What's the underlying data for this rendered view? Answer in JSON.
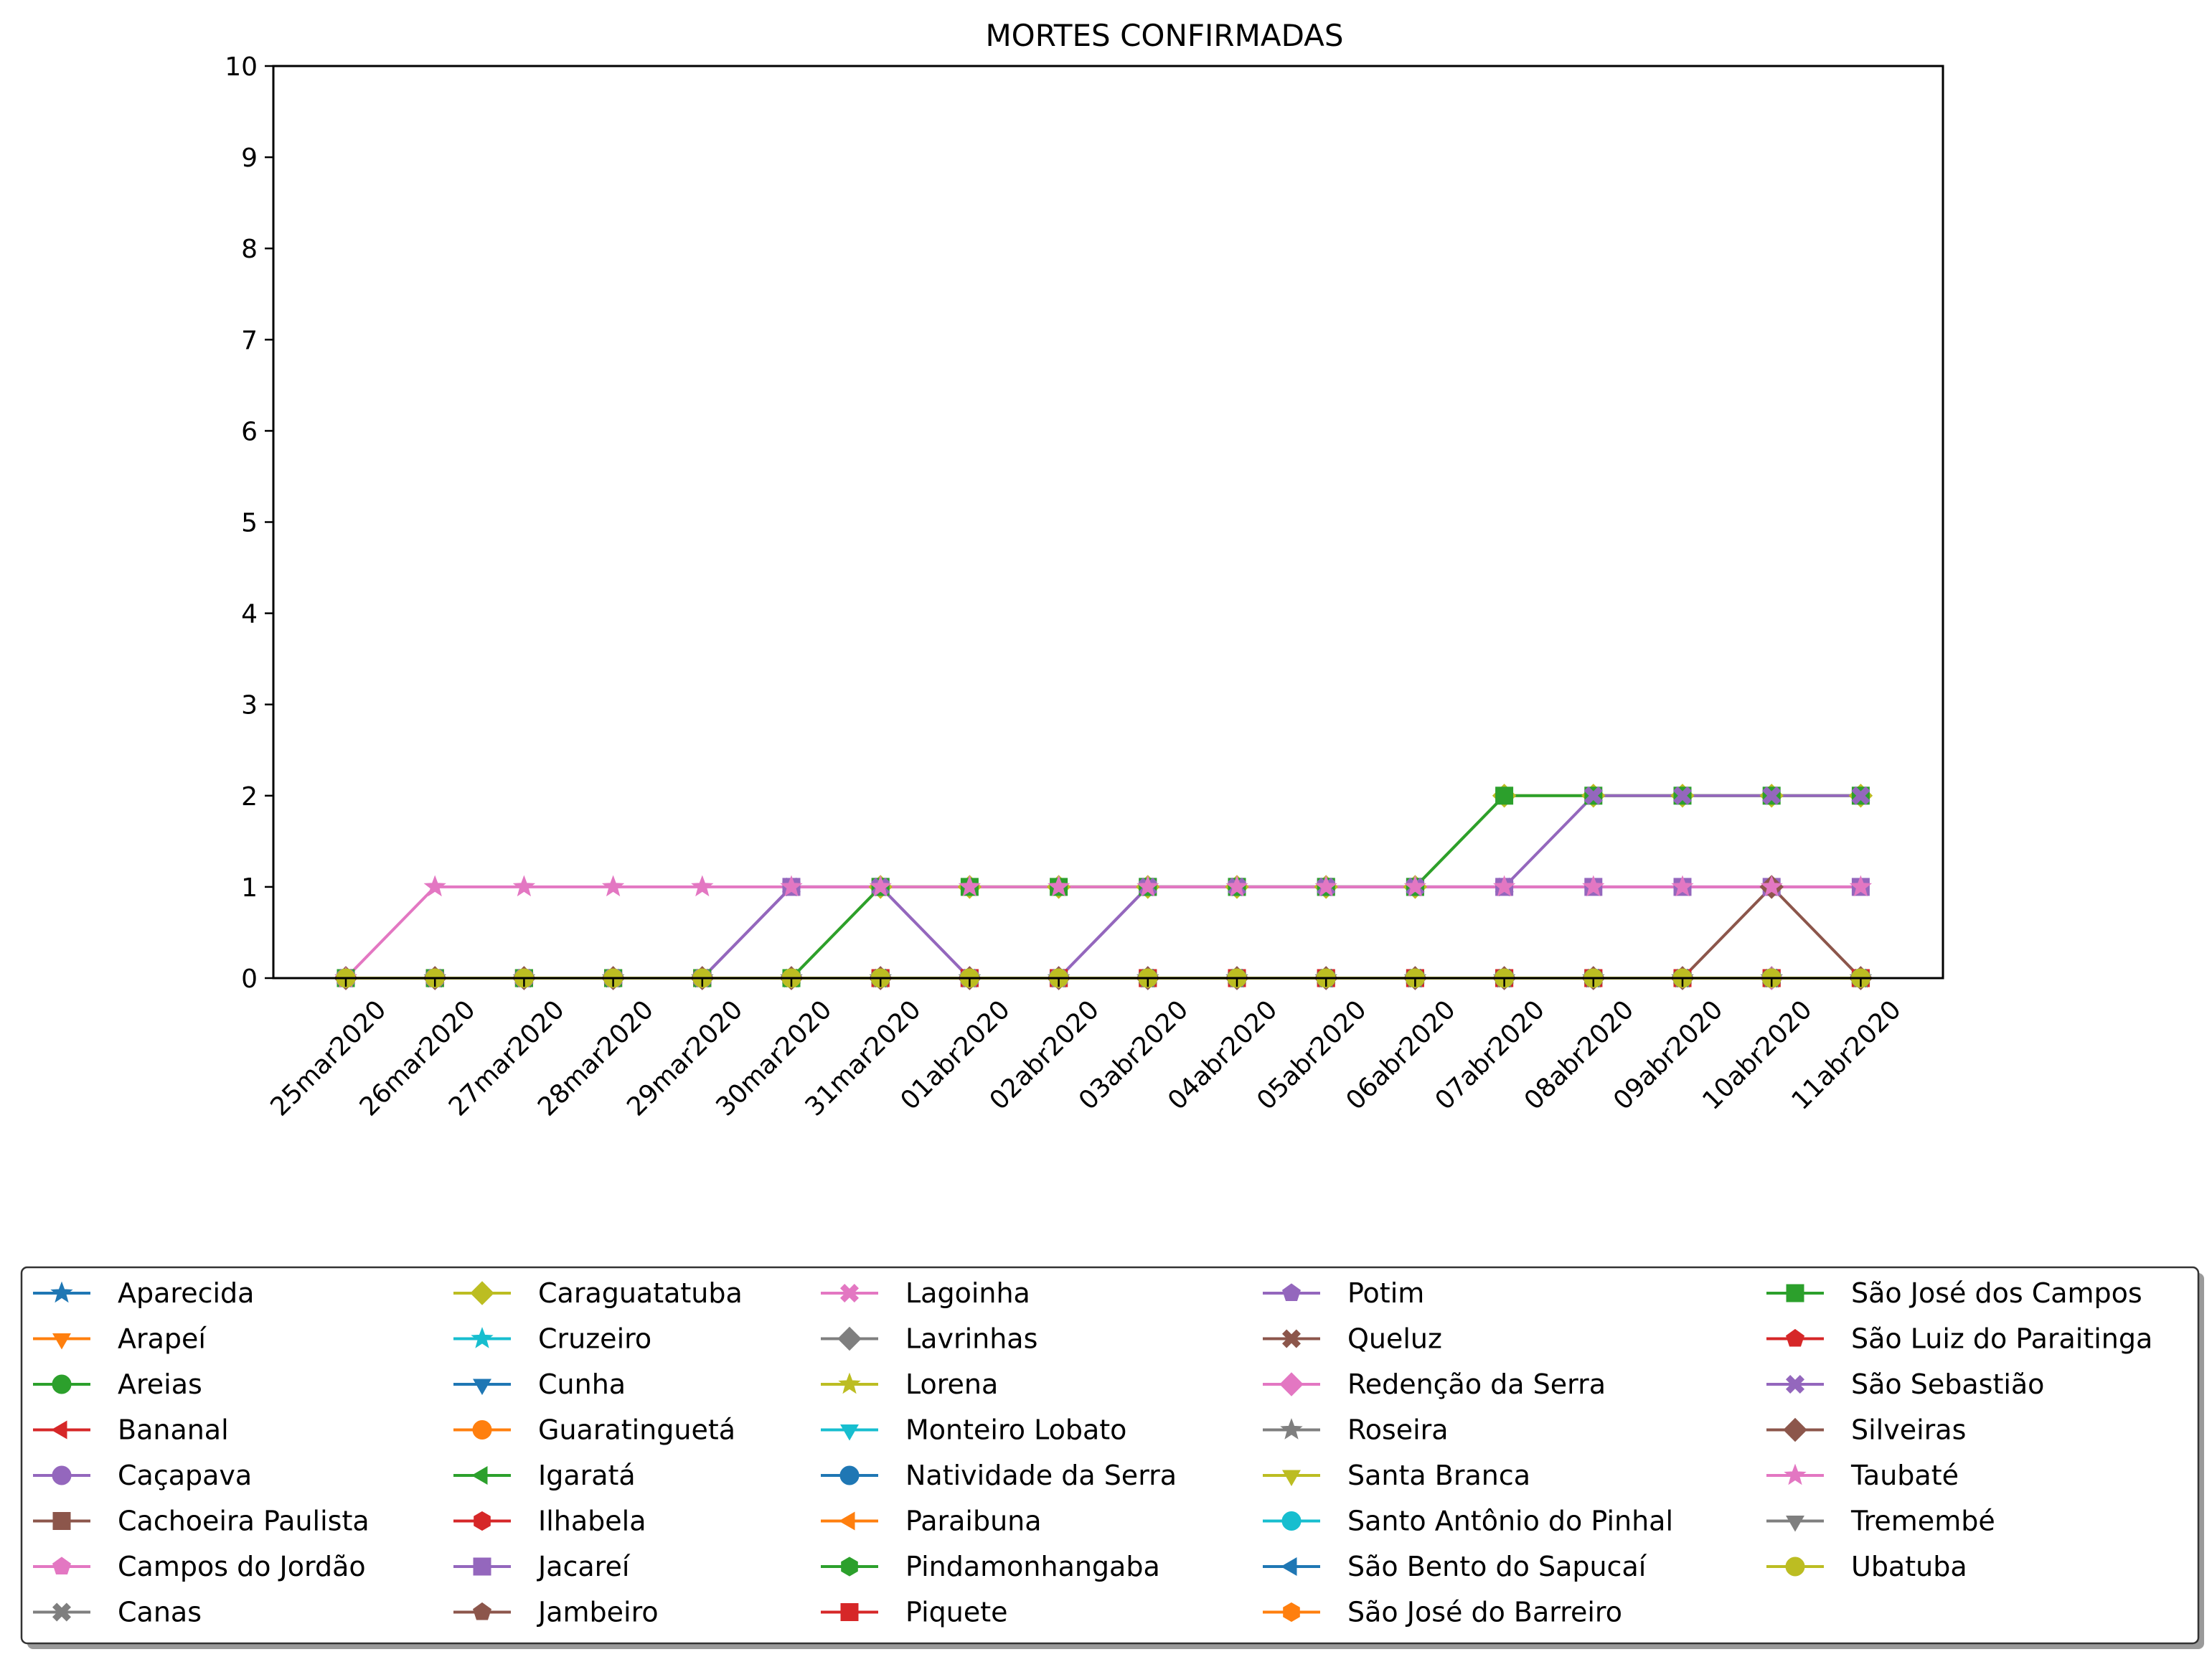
{
  "chart_data": {
    "type": "line",
    "title": "MORTES CONFIRMADAS",
    "xlabel": "",
    "ylabel": "",
    "ylim": [
      0,
      10
    ],
    "yticks": [
      "0",
      "1",
      "2",
      "3",
      "4",
      "5",
      "6",
      "7",
      "8",
      "9",
      "10"
    ],
    "grid": false,
    "legend_position": "bottom",
    "legend_columns": 5,
    "categories": [
      "25mar2020",
      "26mar2020",
      "27mar2020",
      "28mar2020",
      "29mar2020",
      "30mar2020",
      "31mar2020",
      "01abr2020",
      "02abr2020",
      "03abr2020",
      "04abr2020",
      "05abr2020",
      "06abr2020",
      "07abr2020",
      "08abr2020",
      "09abr2020",
      "10abr2020",
      "11abr2020"
    ],
    "series": [
      {
        "name": "Aparecida",
        "color": "#1f77b4",
        "marker": "star",
        "values": [
          0,
          0,
          0,
          0,
          0,
          0,
          0,
          0,
          0,
          0,
          0,
          0,
          0,
          0,
          0,
          0,
          0,
          0
        ]
      },
      {
        "name": "Arapeí",
        "color": "#ff7f0e",
        "marker": "triangle-down",
        "values": [
          0,
          0,
          0,
          0,
          0,
          0,
          0,
          0,
          0,
          0,
          0,
          0,
          0,
          0,
          0,
          0,
          0,
          0
        ]
      },
      {
        "name": "Areias",
        "color": "#2ca02c",
        "marker": "circle",
        "values": [
          0,
          0,
          0,
          0,
          0,
          0,
          0,
          0,
          0,
          0,
          0,
          0,
          0,
          0,
          0,
          0,
          0,
          0
        ]
      },
      {
        "name": "Bananal",
        "color": "#d62728",
        "marker": "triangle-left",
        "values": [
          0,
          0,
          0,
          0,
          0,
          0,
          0,
          0,
          0,
          0,
          0,
          0,
          0,
          0,
          0,
          0,
          0,
          0
        ]
      },
      {
        "name": "Caçapava",
        "color": "#9467bd",
        "marker": "circle",
        "values": [
          0,
          0,
          0,
          0,
          0,
          0,
          0,
          0,
          0,
          0,
          0,
          0,
          0,
          0,
          0,
          0,
          0,
          0
        ]
      },
      {
        "name": "Cachoeira Paulista",
        "color": "#8c564b",
        "marker": "square",
        "values": [
          0,
          0,
          0,
          0,
          0,
          0,
          0,
          0,
          0,
          0,
          0,
          0,
          0,
          0,
          0,
          0,
          0,
          0
        ]
      },
      {
        "name": "Campos do Jordão",
        "color": "#e377c2",
        "marker": "pentagon",
        "values": [
          0,
          0,
          0,
          0,
          0,
          0,
          0,
          0,
          0,
          0,
          0,
          0,
          0,
          0,
          0,
          0,
          0,
          0
        ]
      },
      {
        "name": "Canas",
        "color": "#7f7f7f",
        "marker": "x-filled",
        "values": [
          0,
          0,
          0,
          0,
          0,
          0,
          0,
          0,
          0,
          0,
          0,
          0,
          0,
          0,
          0,
          0,
          0,
          0
        ]
      },
      {
        "name": "Caraguatatuba",
        "color": "#bcbd22",
        "marker": "diamond",
        "values": [
          0,
          0,
          0,
          0,
          0,
          0,
          1,
          1,
          1,
          1,
          1,
          1,
          1,
          2,
          2,
          2,
          2,
          2
        ]
      },
      {
        "name": "Cruzeiro",
        "color": "#17becf",
        "marker": "star",
        "values": [
          0,
          0,
          0,
          0,
          0,
          0,
          0,
          0,
          0,
          0,
          0,
          0,
          0,
          0,
          0,
          0,
          0,
          0
        ]
      },
      {
        "name": "Cunha",
        "color": "#1f77b4",
        "marker": "triangle-down",
        "values": [
          0,
          0,
          0,
          0,
          0,
          0,
          0,
          0,
          0,
          0,
          0,
          0,
          0,
          0,
          0,
          0,
          0,
          0
        ]
      },
      {
        "name": "Guaratinguetá",
        "color": "#ff7f0e",
        "marker": "circle",
        "values": [
          0,
          0,
          0,
          0,
          0,
          0,
          0,
          0,
          0,
          0,
          0,
          0,
          0,
          0,
          0,
          0,
          0,
          0
        ]
      },
      {
        "name": "Igaratá",
        "color": "#2ca02c",
        "marker": "triangle-left",
        "values": [
          0,
          0,
          0,
          0,
          0,
          0,
          0,
          0,
          0,
          0,
          0,
          0,
          0,
          0,
          0,
          0,
          0,
          0
        ]
      },
      {
        "name": "Ilhabela",
        "color": "#d62728",
        "marker": "hexagon",
        "values": [
          0,
          0,
          0,
          0,
          0,
          0,
          0,
          0,
          0,
          0,
          0,
          0,
          0,
          0,
          0,
          0,
          0,
          0
        ]
      },
      {
        "name": "Jacareí",
        "color": "#9467bd",
        "marker": "square",
        "values": [
          0,
          0,
          0,
          0,
          0,
          1,
          1,
          0,
          0,
          1,
          1,
          1,
          1,
          1,
          1,
          1,
          1,
          1
        ]
      },
      {
        "name": "Jambeiro",
        "color": "#8c564b",
        "marker": "pentagon",
        "values": [
          0,
          0,
          0,
          0,
          0,
          0,
          0,
          0,
          0,
          0,
          0,
          0,
          0,
          0,
          0,
          0,
          0,
          0
        ]
      },
      {
        "name": "Lagoinha",
        "color": "#e377c2",
        "marker": "x-filled",
        "values": [
          0,
          0,
          0,
          0,
          0,
          0,
          0,
          0,
          0,
          0,
          0,
          0,
          0,
          0,
          0,
          0,
          0,
          0
        ]
      },
      {
        "name": "Lavrinhas",
        "color": "#7f7f7f",
        "marker": "diamond",
        "values": [
          0,
          0,
          0,
          0,
          0,
          0,
          0,
          0,
          0,
          0,
          0,
          0,
          0,
          0,
          0,
          0,
          0,
          0
        ]
      },
      {
        "name": "Lorena",
        "color": "#bcbd22",
        "marker": "star",
        "values": [
          0,
          0,
          0,
          0,
          0,
          0,
          0,
          0,
          0,
          0,
          0,
          0,
          0,
          0,
          0,
          0,
          0,
          0
        ]
      },
      {
        "name": "Monteiro Lobato",
        "color": "#17becf",
        "marker": "triangle-down",
        "values": [
          0,
          0,
          0,
          0,
          0,
          0,
          0,
          0,
          0,
          0,
          0,
          0,
          0,
          0,
          0,
          0,
          0,
          0
        ]
      },
      {
        "name": "Natividade da Serra",
        "color": "#1f77b4",
        "marker": "circle",
        "values": [
          0,
          0,
          0,
          0,
          0,
          0,
          0,
          0,
          0,
          0,
          0,
          0,
          0,
          0,
          0,
          0,
          0,
          0
        ]
      },
      {
        "name": "Paraibuna",
        "color": "#ff7f0e",
        "marker": "triangle-left",
        "values": [
          0,
          0,
          0,
          0,
          0,
          0,
          0,
          0,
          0,
          0,
          0,
          0,
          0,
          0,
          0,
          0,
          0,
          0
        ]
      },
      {
        "name": "Pindamonhangaba",
        "color": "#2ca02c",
        "marker": "hexagon",
        "values": [
          0,
          0,
          0,
          0,
          0,
          0,
          0,
          0,
          0,
          0,
          0,
          0,
          0,
          0,
          0,
          0,
          0,
          0
        ]
      },
      {
        "name": "Piquete",
        "color": "#d62728",
        "marker": "square",
        "values": [
          0,
          0,
          0,
          0,
          0,
          0,
          0,
          0,
          0,
          0,
          0,
          0,
          0,
          0,
          0,
          0,
          0,
          0
        ]
      },
      {
        "name": "Potim",
        "color": "#9467bd",
        "marker": "pentagon",
        "values": [
          0,
          0,
          0,
          0,
          0,
          0,
          0,
          0,
          0,
          0,
          0,
          0,
          0,
          0,
          0,
          0,
          0,
          0
        ]
      },
      {
        "name": "Queluz",
        "color": "#8c564b",
        "marker": "x-filled",
        "values": [
          0,
          0,
          0,
          0,
          0,
          0,
          0,
          0,
          0,
          0,
          0,
          0,
          0,
          0,
          0,
          0,
          0,
          0
        ]
      },
      {
        "name": "Redenção da Serra",
        "color": "#e377c2",
        "marker": "diamond",
        "values": [
          0,
          0,
          0,
          0,
          0,
          0,
          0,
          0,
          0,
          0,
          0,
          0,
          0,
          0,
          0,
          0,
          0,
          0
        ]
      },
      {
        "name": "Roseira",
        "color": "#7f7f7f",
        "marker": "star",
        "values": [
          0,
          0,
          0,
          0,
          0,
          0,
          0,
          0,
          0,
          0,
          0,
          0,
          0,
          0,
          0,
          0,
          0,
          0
        ]
      },
      {
        "name": "Santa Branca",
        "color": "#bcbd22",
        "marker": "triangle-down",
        "values": [
          0,
          0,
          0,
          0,
          0,
          0,
          0,
          0,
          0,
          0,
          0,
          0,
          0,
          0,
          0,
          0,
          0,
          0
        ]
      },
      {
        "name": "Santo Antônio do Pinhal",
        "color": "#17becf",
        "marker": "circle",
        "values": [
          0,
          0,
          0,
          0,
          0,
          0,
          0,
          0,
          0,
          0,
          0,
          0,
          0,
          0,
          0,
          0,
          0,
          0
        ]
      },
      {
        "name": "São Bento do Sapucaí",
        "color": "#1f77b4",
        "marker": "triangle-left",
        "values": [
          0,
          0,
          0,
          0,
          0,
          0,
          0,
          0,
          0,
          0,
          0,
          0,
          0,
          0,
          0,
          0,
          0,
          0
        ]
      },
      {
        "name": "São José do Barreiro",
        "color": "#ff7f0e",
        "marker": "hexagon",
        "values": [
          0,
          0,
          0,
          0,
          0,
          0,
          0,
          0,
          0,
          0,
          0,
          0,
          0,
          0,
          0,
          0,
          0,
          0
        ]
      },
      {
        "name": "São José dos Campos",
        "color": "#2ca02c",
        "marker": "square",
        "values": [
          0,
          0,
          0,
          0,
          0,
          0,
          1,
          1,
          1,
          1,
          1,
          1,
          1,
          2,
          2,
          2,
          2,
          2
        ]
      },
      {
        "name": "São Luiz do Paraitinga",
        "color": "#d62728",
        "marker": "pentagon",
        "values": [
          0,
          0,
          0,
          0,
          0,
          0,
          0,
          0,
          0,
          0,
          0,
          0,
          0,
          0,
          0,
          0,
          0,
          0
        ]
      },
      {
        "name": "São Sebastião",
        "color": "#9467bd",
        "marker": "x-filled",
        "values": [
          0,
          0,
          0,
          0,
          0,
          1,
          1,
          0,
          0,
          1,
          1,
          1,
          1,
          1,
          2,
          2,
          2,
          2
        ]
      },
      {
        "name": "Silveiras",
        "color": "#8c564b",
        "marker": "diamond",
        "values": [
          0,
          0,
          0,
          0,
          0,
          0,
          0,
          0,
          0,
          0,
          0,
          0,
          0,
          0,
          0,
          0,
          1,
          0
        ]
      },
      {
        "name": "Taubaté",
        "color": "#e377c2",
        "marker": "star",
        "values": [
          0,
          1,
          1,
          1,
          1,
          1,
          1,
          1,
          1,
          1,
          1,
          1,
          1,
          1,
          1,
          1,
          1,
          1
        ]
      },
      {
        "name": "Tremembé",
        "color": "#7f7f7f",
        "marker": "triangle-down",
        "values": [
          0,
          0,
          0,
          0,
          0,
          0,
          0,
          0,
          0,
          0,
          0,
          0,
          0,
          0,
          0,
          0,
          0,
          0
        ]
      },
      {
        "name": "Ubatuba",
        "color": "#bcbd22",
        "marker": "circle",
        "values": [
          0,
          0,
          0,
          0,
          0,
          0,
          0,
          0,
          0,
          0,
          0,
          0,
          0,
          0,
          0,
          0,
          0,
          0
        ]
      }
    ]
  }
}
